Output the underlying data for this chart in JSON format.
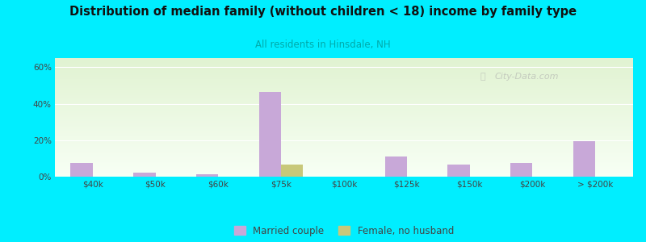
{
  "title": "Distribution of median family (without children < 18) income by family type",
  "subtitle": "All residents in Hinsdale, NH",
  "categories": [
    "$40k",
    "$50k",
    "$60k",
    "$75k",
    "$100k",
    "$125k",
    "$150k",
    "$200k",
    "> $200k"
  ],
  "married_couple": [
    7.5,
    2.0,
    1.5,
    46.5,
    0.0,
    11.0,
    6.5,
    7.5,
    19.5
  ],
  "female_no_husband": [
    0.0,
    0.0,
    0.0,
    6.5,
    0.0,
    0.0,
    0.0,
    0.0,
    0.0
  ],
  "married_color": "#c8a8d8",
  "female_color": "#c8c87a",
  "title_color": "#111111",
  "subtitle_color": "#00aaaa",
  "background_color": "#00eeff",
  "ylabel_ticks": [
    "0%",
    "20%",
    "40%",
    "60%"
  ],
  "yticks": [
    0,
    20,
    40,
    60
  ],
  "ylim": [
    0,
    65
  ],
  "bar_width": 0.35,
  "watermark": "City-Data.com"
}
